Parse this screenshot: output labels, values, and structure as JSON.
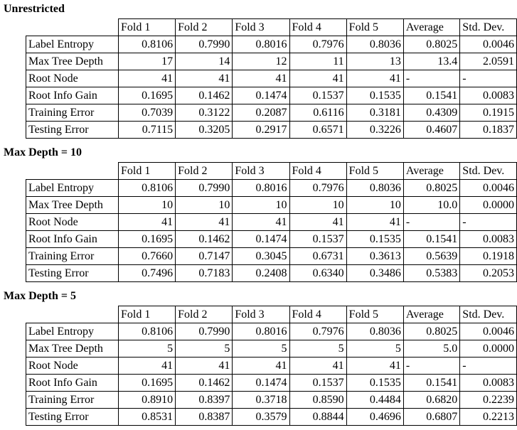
{
  "columns": [
    "Fold 1",
    "Fold 2",
    "Fold 3",
    "Fold 4",
    "Fold 5",
    "Average",
    "Std. Dev."
  ],
  "sections": [
    {
      "title": "Unrestricted",
      "rows": [
        {
          "label": "Label Entropy",
          "cells": [
            "0.8106",
            "0.7990",
            "0.8016",
            "0.7976",
            "0.8036",
            "0.8025",
            "0.0046"
          ]
        },
        {
          "label": "Max Tree Depth",
          "cells": [
            "17",
            "14",
            "12",
            "11",
            "13",
            "13.4",
            "2.0591"
          ]
        },
        {
          "label": "Root Node",
          "cells": [
            "41",
            "41",
            "41",
            "41",
            "41",
            "-",
            "-"
          ]
        },
        {
          "label": "Root Info Gain",
          "cells": [
            "0.1695",
            "0.1462",
            "0.1474",
            "0.1537",
            "0.1535",
            "0.1541",
            "0.0083"
          ]
        },
        {
          "label": "Training Error",
          "cells": [
            "0.7039",
            "0.3122",
            "0.2087",
            "0.6116",
            "0.3181",
            "0.4309",
            "0.1915"
          ]
        },
        {
          "label": "Testing Error",
          "cells": [
            "0.7115",
            "0.3205",
            "0.2917",
            "0.6571",
            "0.3226",
            "0.4607",
            "0.1837"
          ]
        }
      ]
    },
    {
      "title": "Max Depth = 10",
      "rows": [
        {
          "label": "Label Entropy",
          "cells": [
            "0.8106",
            "0.7990",
            "0.8016",
            "0.7976",
            "0.8036",
            "0.8025",
            "0.0046"
          ]
        },
        {
          "label": "Max Tree Depth",
          "cells": [
            "10",
            "10",
            "10",
            "10",
            "10",
            "10.0",
            "0.0000"
          ]
        },
        {
          "label": "Root Node",
          "cells": [
            "41",
            "41",
            "41",
            "41",
            "41",
            "-",
            "-"
          ]
        },
        {
          "label": "Root Info Gain",
          "cells": [
            "0.1695",
            "0.1462",
            "0.1474",
            "0.1537",
            "0.1535",
            "0.1541",
            "0.0083"
          ]
        },
        {
          "label": "Training Error",
          "cells": [
            "0.7660",
            "0.7147",
            "0.3045",
            "0.6731",
            "0.3613",
            "0.5639",
            "0.1918"
          ]
        },
        {
          "label": "Testing Error",
          "cells": [
            "0.7496",
            "0.7183",
            "0.2408",
            "0.6340",
            "0.3486",
            "0.5383",
            "0.2053"
          ]
        }
      ]
    },
    {
      "title": "Max Depth = 5",
      "rows": [
        {
          "label": "Label Entropy",
          "cells": [
            "0.8106",
            "0.7990",
            "0.8016",
            "0.7976",
            "0.8036",
            "0.8025",
            "0.0046"
          ]
        },
        {
          "label": "Max Tree Depth",
          "cells": [
            "5",
            "5",
            "5",
            "5",
            "5",
            "5.0",
            "0.0000"
          ]
        },
        {
          "label": "Root Node",
          "cells": [
            "41",
            "41",
            "41",
            "41",
            "41",
            "-",
            "-"
          ]
        },
        {
          "label": "Root Info Gain",
          "cells": [
            "0.1695",
            "0.1462",
            "0.1474",
            "0.1537",
            "0.1535",
            "0.1541",
            "0.0083"
          ]
        },
        {
          "label": "Training Error",
          "cells": [
            "0.8910",
            "0.8397",
            "0.3718",
            "0.8590",
            "0.4484",
            "0.6820",
            "0.2239"
          ]
        },
        {
          "label": "Testing Error",
          "cells": [
            "0.8531",
            "0.8387",
            "0.3579",
            "0.8844",
            "0.4696",
            "0.6807",
            "0.2213"
          ]
        }
      ]
    }
  ]
}
